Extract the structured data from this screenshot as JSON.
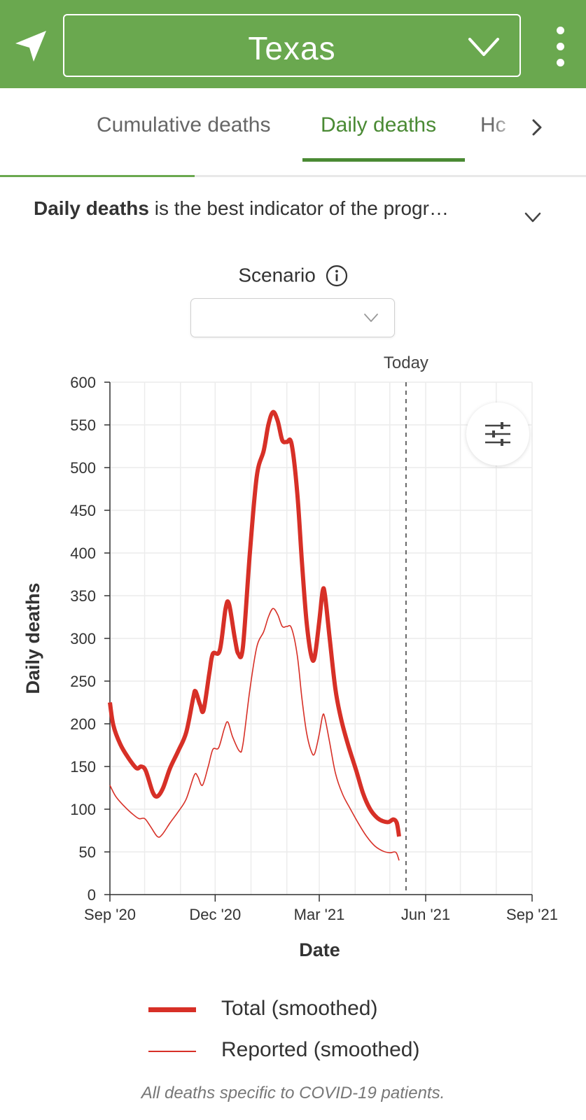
{
  "header": {
    "state": "Texas",
    "location_icon": "navigation-arrow-icon",
    "chevron_icon": "chevron-down-icon",
    "menu_icon": "vertical-dots-icon",
    "bg_color": "#6aa84f"
  },
  "tabs": {
    "items": [
      {
        "label": "Cumulative deaths",
        "active": false
      },
      {
        "label": "Daily deaths",
        "active": true
      },
      {
        "label": "Hc",
        "active": false
      }
    ],
    "next_icon": "chevron-right-icon",
    "active_color": "#4a8a34"
  },
  "description": {
    "bold": "Daily deaths",
    "rest": " is the best indicator of the progr…"
  },
  "scenario": {
    "label": "Scenario",
    "value": ""
  },
  "chart_data": {
    "type": "line",
    "xlabel": "Date",
    "ylabel": "Daily deaths",
    "ylim": [
      0,
      600
    ],
    "yticks": [
      0,
      50,
      100,
      150,
      200,
      250,
      300,
      350,
      400,
      450,
      500,
      550,
      600
    ],
    "xlim": [
      "2020-09-01",
      "2021-09-01"
    ],
    "xticks": [
      {
        "label": "Sep '20",
        "date": "2020-09-01"
      },
      {
        "label": "Dec '20",
        "date": "2020-12-01"
      },
      {
        "label": "Mar '21",
        "date": "2021-03-01"
      },
      {
        "label": "Jun '21",
        "date": "2021-06-01"
      },
      {
        "label": "Sep '21",
        "date": "2021-09-01"
      }
    ],
    "today": {
      "label": "Today",
      "date": "2021-05-15"
    },
    "grid": true,
    "legend_position": "bottom",
    "series": [
      {
        "name": "Total (smoothed)",
        "color": "#d73027",
        "stroke": "thick",
        "points": [
          [
            "2020-09-01",
            225
          ],
          [
            "2020-09-04",
            198
          ],
          [
            "2020-09-10",
            176
          ],
          [
            "2020-09-17",
            160
          ],
          [
            "2020-09-24",
            148
          ],
          [
            "2020-09-28",
            150
          ],
          [
            "2020-10-02",
            145
          ],
          [
            "2020-10-08",
            120
          ],
          [
            "2020-10-12",
            115
          ],
          [
            "2020-10-17",
            125
          ],
          [
            "2020-10-23",
            148
          ],
          [
            "2020-10-30",
            168
          ],
          [
            "2020-11-06",
            190
          ],
          [
            "2020-11-12",
            230
          ],
          [
            "2020-11-14",
            238
          ],
          [
            "2020-11-18",
            222
          ],
          [
            "2020-11-21",
            216
          ],
          [
            "2020-11-26",
            260
          ],
          [
            "2020-11-29",
            282
          ],
          [
            "2020-12-05",
            286
          ],
          [
            "2020-12-10",
            335
          ],
          [
            "2020-12-13",
            340
          ],
          [
            "2020-12-18",
            300
          ],
          [
            "2020-12-21",
            282
          ],
          [
            "2020-12-25",
            290
          ],
          [
            "2020-12-31",
            400
          ],
          [
            "2021-01-06",
            490
          ],
          [
            "2021-01-12",
            520
          ],
          [
            "2021-01-16",
            550
          ],
          [
            "2021-01-20",
            565
          ],
          [
            "2021-01-24",
            555
          ],
          [
            "2021-01-28",
            532
          ],
          [
            "2021-02-01",
            530
          ],
          [
            "2021-02-05",
            528
          ],
          [
            "2021-02-10",
            470
          ],
          [
            "2021-02-14",
            390
          ],
          [
            "2021-02-18",
            320
          ],
          [
            "2021-02-22",
            280
          ],
          [
            "2021-02-25",
            278
          ],
          [
            "2021-03-01",
            320
          ],
          [
            "2021-03-04",
            356
          ],
          [
            "2021-03-06",
            350
          ],
          [
            "2021-03-10",
            300
          ],
          [
            "2021-03-15",
            240
          ],
          [
            "2021-03-20",
            205
          ],
          [
            "2021-03-26",
            175
          ],
          [
            "2021-04-02",
            145
          ],
          [
            "2021-04-08",
            118
          ],
          [
            "2021-04-14",
            100
          ],
          [
            "2021-04-20",
            90
          ],
          [
            "2021-04-25",
            86
          ],
          [
            "2021-04-30",
            85
          ],
          [
            "2021-05-04",
            88
          ],
          [
            "2021-05-07",
            84
          ],
          [
            "2021-05-09",
            68
          ]
        ]
      },
      {
        "name": "Reported (smoothed)",
        "color": "#d73027",
        "stroke": "thin",
        "points": [
          [
            "2020-09-01",
            128
          ],
          [
            "2020-09-06",
            115
          ],
          [
            "2020-09-13",
            104
          ],
          [
            "2020-09-20",
            95
          ],
          [
            "2020-09-26",
            89
          ],
          [
            "2020-10-01",
            89
          ],
          [
            "2020-10-06",
            80
          ],
          [
            "2020-10-12",
            68
          ],
          [
            "2020-10-16",
            70
          ],
          [
            "2020-10-23",
            84
          ],
          [
            "2020-10-30",
            97
          ],
          [
            "2020-11-06",
            112
          ],
          [
            "2020-11-13",
            140
          ],
          [
            "2020-11-16",
            138
          ],
          [
            "2020-11-20",
            128
          ],
          [
            "2020-11-25",
            150
          ],
          [
            "2020-11-29",
            170
          ],
          [
            "2020-12-04",
            172
          ],
          [
            "2020-12-09",
            195
          ],
          [
            "2020-12-12",
            202
          ],
          [
            "2020-12-16",
            185
          ],
          [
            "2020-12-22",
            168
          ],
          [
            "2020-12-25",
            176
          ],
          [
            "2020-12-31",
            240
          ],
          [
            "2021-01-06",
            290
          ],
          [
            "2021-01-12",
            308
          ],
          [
            "2021-01-16",
            325
          ],
          [
            "2021-01-20",
            335
          ],
          [
            "2021-01-24",
            328
          ],
          [
            "2021-01-28",
            314
          ],
          [
            "2021-02-01",
            314
          ],
          [
            "2021-02-05",
            312
          ],
          [
            "2021-02-10",
            280
          ],
          [
            "2021-02-14",
            230
          ],
          [
            "2021-02-18",
            190
          ],
          [
            "2021-02-22",
            168
          ],
          [
            "2021-02-25",
            165
          ],
          [
            "2021-03-01",
            188
          ],
          [
            "2021-03-04",
            210
          ],
          [
            "2021-03-06",
            206
          ],
          [
            "2021-03-10",
            178
          ],
          [
            "2021-03-15",
            142
          ],
          [
            "2021-03-21",
            118
          ],
          [
            "2021-03-28",
            100
          ],
          [
            "2021-04-04",
            83
          ],
          [
            "2021-04-11",
            68
          ],
          [
            "2021-04-18",
            57
          ],
          [
            "2021-04-25",
            51
          ],
          [
            "2021-05-01",
            49
          ],
          [
            "2021-05-05",
            50
          ],
          [
            "2021-05-07",
            48
          ],
          [
            "2021-05-09",
            40
          ]
        ]
      }
    ]
  },
  "filter_icon": "sliders-icon",
  "footnote": "All deaths specific to COVID-19 patients."
}
